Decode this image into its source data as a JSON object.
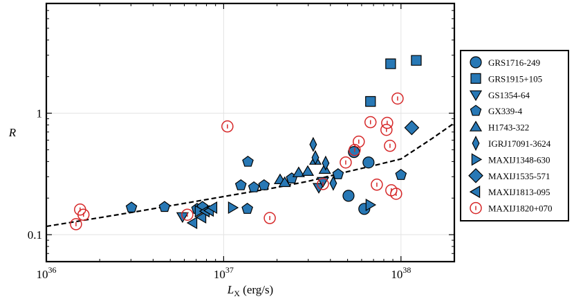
{
  "chart_data": {
    "type": "scatter",
    "xlabel": [
      "L",
      "X",
      " (erg/s)"
    ],
    "ylabel": "R",
    "xscale": "log",
    "yscale": "log",
    "xlim": [
      1e+36,
      2e+38
    ],
    "ylim": [
      0.06,
      8
    ],
    "xticks": [
      {
        "value": 1e+36,
        "label": "10^36"
      },
      {
        "value": 1e+37,
        "label": "10^37"
      },
      {
        "value": 1e+38,
        "label": "10^38"
      }
    ],
    "yticks": [
      0.1,
      1
    ],
    "grid": true,
    "legend": "outside right",
    "curve": {
      "style": "dashed",
      "color": "#000000",
      "x": [
        1e+36,
        3e+36,
        1e+37,
        2e+37,
        3e+37,
        5e+37,
        7e+37,
        1e+38,
        1.5e+38,
        2e+38
      ],
      "y": [
        0.117,
        0.152,
        0.206,
        0.245,
        0.275,
        0.33,
        0.37,
        0.42,
        0.62,
        0.83
      ]
    },
    "series": [
      {
        "name": "GRS1716-249",
        "marker": "circle",
        "color": "#2878b5",
        "x": [
          5.43e+37,
          6.56e+37,
          5.06e+37,
          6.21e+37
        ],
        "values": [
          0.479,
          0.393,
          0.209,
          0.163
        ]
      },
      {
        "name": "GRS1915+105",
        "marker": "square",
        "color": "#2878b5",
        "x": [
          8.74e+37,
          1.22e+38,
          6.73e+37
        ],
        "values": [
          2.55,
          2.72,
          1.25
        ]
      },
      {
        "name": "GS1354-64",
        "marker": "triangle-down",
        "color": "#2878b5",
        "x": [
          5.86e+36,
          3.44e+37,
          3.63e+37
        ],
        "values": [
          0.141,
          0.245,
          0.275
        ]
      },
      {
        "name": "GX339-4",
        "marker": "pentagon",
        "color": "#2878b5",
        "x": [
          3.02e+36,
          4.64e+36,
          7.08e+36,
          7.6e+36,
          1.36e+37,
          1.37e+37,
          1.25e+37,
          1.48e+37,
          1.69e+37,
          2.42e+37,
          4.42e+37,
          1e+38
        ],
        "values": [
          0.167,
          0.169,
          0.163,
          0.169,
          0.163,
          0.398,
          0.255,
          0.245,
          0.255,
          0.29,
          0.314,
          0.31
        ]
      },
      {
        "name": "H1743-322",
        "marker": "triangle-up",
        "color": "#2878b5",
        "x": [
          2.08e+37,
          2.21e+37,
          2.65e+37,
          2.98e+37,
          3.29e+37,
          3.72e+37
        ],
        "values": [
          0.283,
          0.268,
          0.323,
          0.331,
          0.409,
          0.344
        ]
      },
      {
        "name": "IGRJ17091-3624",
        "marker": "thin-diamond",
        "color": "#2878b5",
        "x": [
          3.2e+37,
          3.29e+37,
          3.76e+37,
          4.15e+37
        ],
        "values": [
          0.553,
          0.431,
          0.388,
          0.265
        ]
      },
      {
        "name": "MAXIJ1348-630",
        "marker": "triangle-right",
        "color": "#2878b5",
        "x": [
          1.12e+37,
          6.68e+37,
          7.27e+36
        ],
        "values": [
          0.167,
          0.176,
          0.156
        ]
      },
      {
        "name": "MAXIJ1535-571",
        "marker": "diamond",
        "color": "#2878b5",
        "x": [
          1.15e+38
        ],
        "values": [
          0.759
        ]
      },
      {
        "name": "MAXIJ1813-095",
        "marker": "triangle-left",
        "color": "#2878b5",
        "x": [
          6.71e+36,
          7.54e+36,
          7.88e+36,
          8.32e+36,
          8.7e+36
        ],
        "values": [
          0.125,
          0.139,
          0.156,
          0.158,
          0.167
        ]
      },
      {
        "name": "MAXIJ1820+070",
        "marker": "circle-open",
        "color": "#d62728",
        "x": [
          1.47e+36,
          1.55e+36,
          1.62e+36,
          6.24e+36,
          1.05e+37,
          1.82e+37,
          3.63e+37,
          4.88e+37,
          5.48e+37,
          5.78e+37,
          6.73e+37,
          7.31e+37,
          8.28e+37,
          8.36e+37,
          8.67e+37,
          8.82e+37,
          9.39e+37,
          9.57e+37
        ],
        "values": [
          0.122,
          0.161,
          0.146,
          0.146,
          0.778,
          0.137,
          0.261,
          0.393,
          0.498,
          0.583,
          0.843,
          0.258,
          0.729,
          0.832,
          0.539,
          0.232,
          0.217,
          1.32
        ]
      }
    ]
  }
}
